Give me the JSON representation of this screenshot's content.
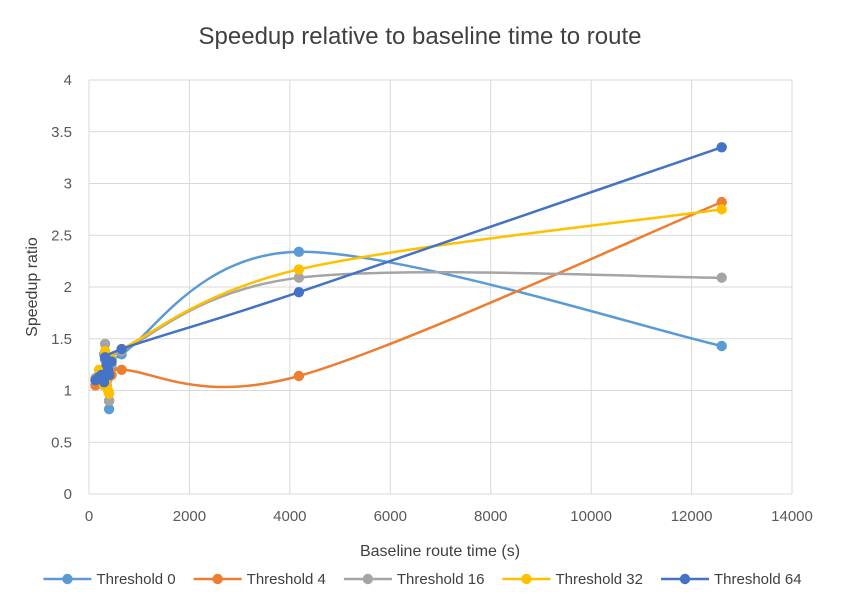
{
  "chart_data": {
    "type": "scatter",
    "title": "Speedup relative to baseline time to route",
    "xlabel": "Baseline route time (s)",
    "ylabel": "Speedup ratio",
    "xlim": [
      0,
      14000
    ],
    "ylim": [
      0,
      4
    ],
    "x_ticks": [
      "0",
      "2000",
      "4000",
      "6000",
      "8000",
      "10000",
      "12000",
      "14000"
    ],
    "y_ticks": [
      "0",
      "0.5",
      "1",
      "1.5",
      "2",
      "2.5",
      "3",
      "3.5",
      "4"
    ],
    "grid": "vertical and horizontal",
    "smoothed_lines": true,
    "legend_position": "bottom",
    "series": [
      {
        "name": "Threshold 0",
        "color": "#5B9BD5",
        "points": [
          [
            130,
            1.05
          ],
          [
            200,
            1.12
          ],
          [
            250,
            1.15
          ],
          [
            300,
            1.2
          ],
          [
            320,
            1.3
          ],
          [
            350,
            1.18
          ],
          [
            380,
            1.25
          ],
          [
            400,
            0.82
          ],
          [
            450,
            1.22
          ],
          [
            650,
            1.35
          ],
          [
            4180,
            2.34
          ],
          [
            12600,
            1.43
          ]
        ]
      },
      {
        "name": "Threshold 4",
        "color": "#ED7D31",
        "points": [
          [
            130,
            1.05
          ],
          [
            200,
            1.1
          ],
          [
            250,
            1.08
          ],
          [
            300,
            1.15
          ],
          [
            320,
            1.1
          ],
          [
            350,
            1.05
          ],
          [
            380,
            1.12
          ],
          [
            400,
            0.9
          ],
          [
            450,
            1.15
          ],
          [
            650,
            1.2
          ],
          [
            4180,
            1.14
          ],
          [
            12600,
            2.82
          ]
        ]
      },
      {
        "name": "Threshold 16",
        "color": "#A5A5A5",
        "points": [
          [
            130,
            1.12
          ],
          [
            200,
            1.15
          ],
          [
            250,
            1.18
          ],
          [
            300,
            1.35
          ],
          [
            320,
            1.45
          ],
          [
            350,
            1.3
          ],
          [
            380,
            1.22
          ],
          [
            400,
            0.9
          ],
          [
            450,
            1.25
          ],
          [
            650,
            1.38
          ],
          [
            4180,
            2.09
          ],
          [
            12600,
            2.09
          ]
        ]
      },
      {
        "name": "Threshold 32",
        "color": "#FFC000",
        "points": [
          [
            130,
            1.1
          ],
          [
            200,
            1.2
          ],
          [
            250,
            1.12
          ],
          [
            300,
            1.05
          ],
          [
            320,
            1.38
          ],
          [
            350,
            1.3
          ],
          [
            380,
            1.0
          ],
          [
            400,
            0.97
          ],
          [
            450,
            1.3
          ],
          [
            650,
            1.4
          ],
          [
            4180,
            2.17
          ],
          [
            12600,
            2.75
          ]
        ]
      },
      {
        "name": "Threshold 64",
        "color": "#4472C4",
        "points": [
          [
            130,
            1.1
          ],
          [
            200,
            1.13
          ],
          [
            250,
            1.15
          ],
          [
            300,
            1.08
          ],
          [
            320,
            1.32
          ],
          [
            350,
            1.25
          ],
          [
            380,
            1.2
          ],
          [
            400,
            1.15
          ],
          [
            450,
            1.28
          ],
          [
            650,
            1.4
          ],
          [
            4180,
            1.95
          ],
          [
            12600,
            3.35
          ]
        ]
      }
    ]
  }
}
